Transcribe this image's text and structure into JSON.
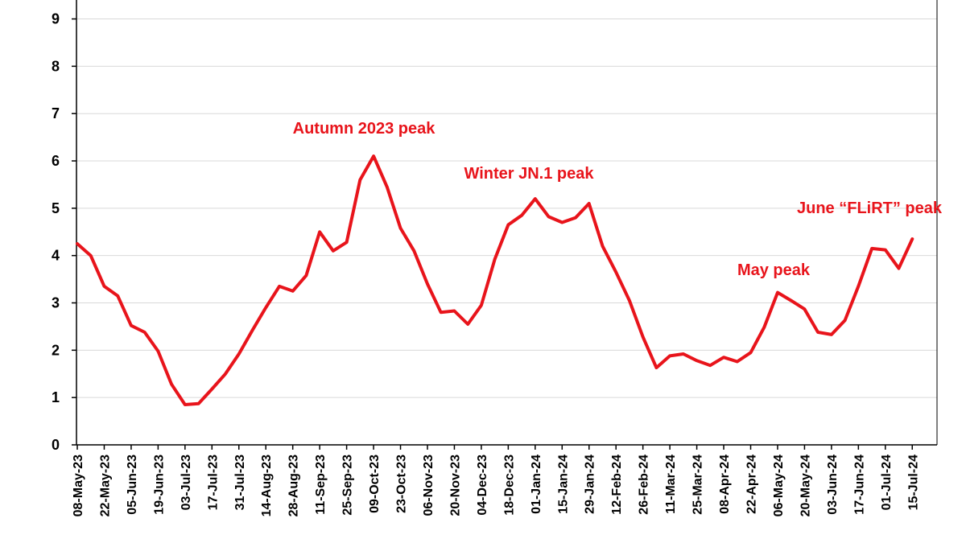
{
  "chart_data": {
    "type": "line",
    "title": "",
    "xlabel": "",
    "ylabel": "",
    "ylim": [
      0,
      9.4
    ],
    "yticks": [
      0,
      1,
      2,
      3,
      4,
      5,
      6,
      7,
      8,
      9
    ],
    "grid": true,
    "line_color": "#e8141b",
    "x_tick_labels": [
      "08-May-23",
      "22-May-23",
      "05-Jun-23",
      "19-Jun-23",
      "03-Jul-23",
      "17-Jul-23",
      "31-Jul-23",
      "14-Aug-23",
      "28-Aug-23",
      "11-Sep-23",
      "25-Sep-23",
      "09-Oct-23",
      "23-Oct-23",
      "06-Nov-23",
      "20-Nov-23",
      "04-Dec-23",
      "18-Dec-23",
      "01-Jan-24",
      "15-Jan-24",
      "29-Jan-24",
      "12-Feb-24",
      "26-Feb-24",
      "11-Mar-24",
      "25-Mar-24",
      "08-Apr-24",
      "22-Apr-24",
      "06-May-24",
      "20-May-24",
      "03-Jun-24",
      "17-Jun-24",
      "01-Jul-24",
      "15-Jul-24"
    ],
    "series": [
      {
        "x": [
          "08-May-23",
          "15-May-23",
          "22-May-23",
          "29-May-23",
          "05-Jun-23",
          "12-Jun-23",
          "19-Jun-23",
          "26-Jun-23",
          "03-Jul-23",
          "10-Jul-23",
          "17-Jul-23",
          "24-Jul-23",
          "31-Jul-23",
          "07-Aug-23",
          "14-Aug-23",
          "21-Aug-23",
          "28-Aug-23",
          "04-Sep-23",
          "11-Sep-23",
          "18-Sep-23",
          "25-Sep-23",
          "02-Oct-23",
          "09-Oct-23",
          "16-Oct-23",
          "23-Oct-23",
          "30-Oct-23",
          "06-Nov-23",
          "13-Nov-23",
          "20-Nov-23",
          "27-Nov-23",
          "04-Dec-23",
          "11-Dec-23",
          "18-Dec-23",
          "25-Dec-23",
          "01-Jan-24",
          "08-Jan-24",
          "15-Jan-24",
          "22-Jan-24",
          "29-Jan-24",
          "05-Feb-24",
          "12-Feb-24",
          "19-Feb-24",
          "26-Feb-24",
          "04-Mar-24",
          "11-Mar-24",
          "18-Mar-24",
          "25-Mar-24",
          "01-Apr-24",
          "08-Apr-24",
          "15-Apr-24",
          "22-Apr-24",
          "29-Apr-24",
          "06-May-24",
          "13-May-24",
          "20-May-24",
          "27-May-24",
          "03-Jun-24",
          "10-Jun-24",
          "17-Jun-24",
          "24-Jun-24",
          "01-Jul-24",
          "08-Jul-24",
          "15-Jul-24"
        ],
        "values": [
          4.25,
          4.0,
          3.35,
          3.15,
          2.52,
          2.38,
          1.98,
          1.28,
          0.85,
          0.87,
          1.18,
          1.5,
          1.92,
          2.42,
          2.9,
          3.35,
          3.25,
          3.58,
          4.5,
          4.1,
          4.28,
          5.6,
          6.1,
          5.45,
          4.58,
          4.1,
          3.4,
          2.8,
          2.83,
          2.55,
          2.95,
          3.92,
          4.65,
          4.85,
          5.2,
          4.82,
          4.7,
          4.8,
          5.1,
          4.2,
          3.65,
          3.05,
          2.28,
          1.63,
          1.88,
          1.92,
          1.78,
          1.68,
          1.85,
          1.76,
          1.95,
          2.48,
          3.22,
          3.05,
          2.87,
          2.38,
          2.33,
          2.63,
          3.35,
          4.15,
          4.12,
          3.73,
          4.35
        ]
      }
    ],
    "annotations": [
      {
        "text": "Autumn 2023 peak",
        "x": "09-Oct-23",
        "y": 6.1
      },
      {
        "text": "Winter JN.1 peak",
        "x": "01-Jan-24",
        "y": 5.2
      },
      {
        "text": "June “FLiRT” peak",
        "x": "15-Jul-24",
        "y": 4.35
      },
      {
        "text": "May peak",
        "x": "06-May-24",
        "y": 3.22
      }
    ]
  }
}
